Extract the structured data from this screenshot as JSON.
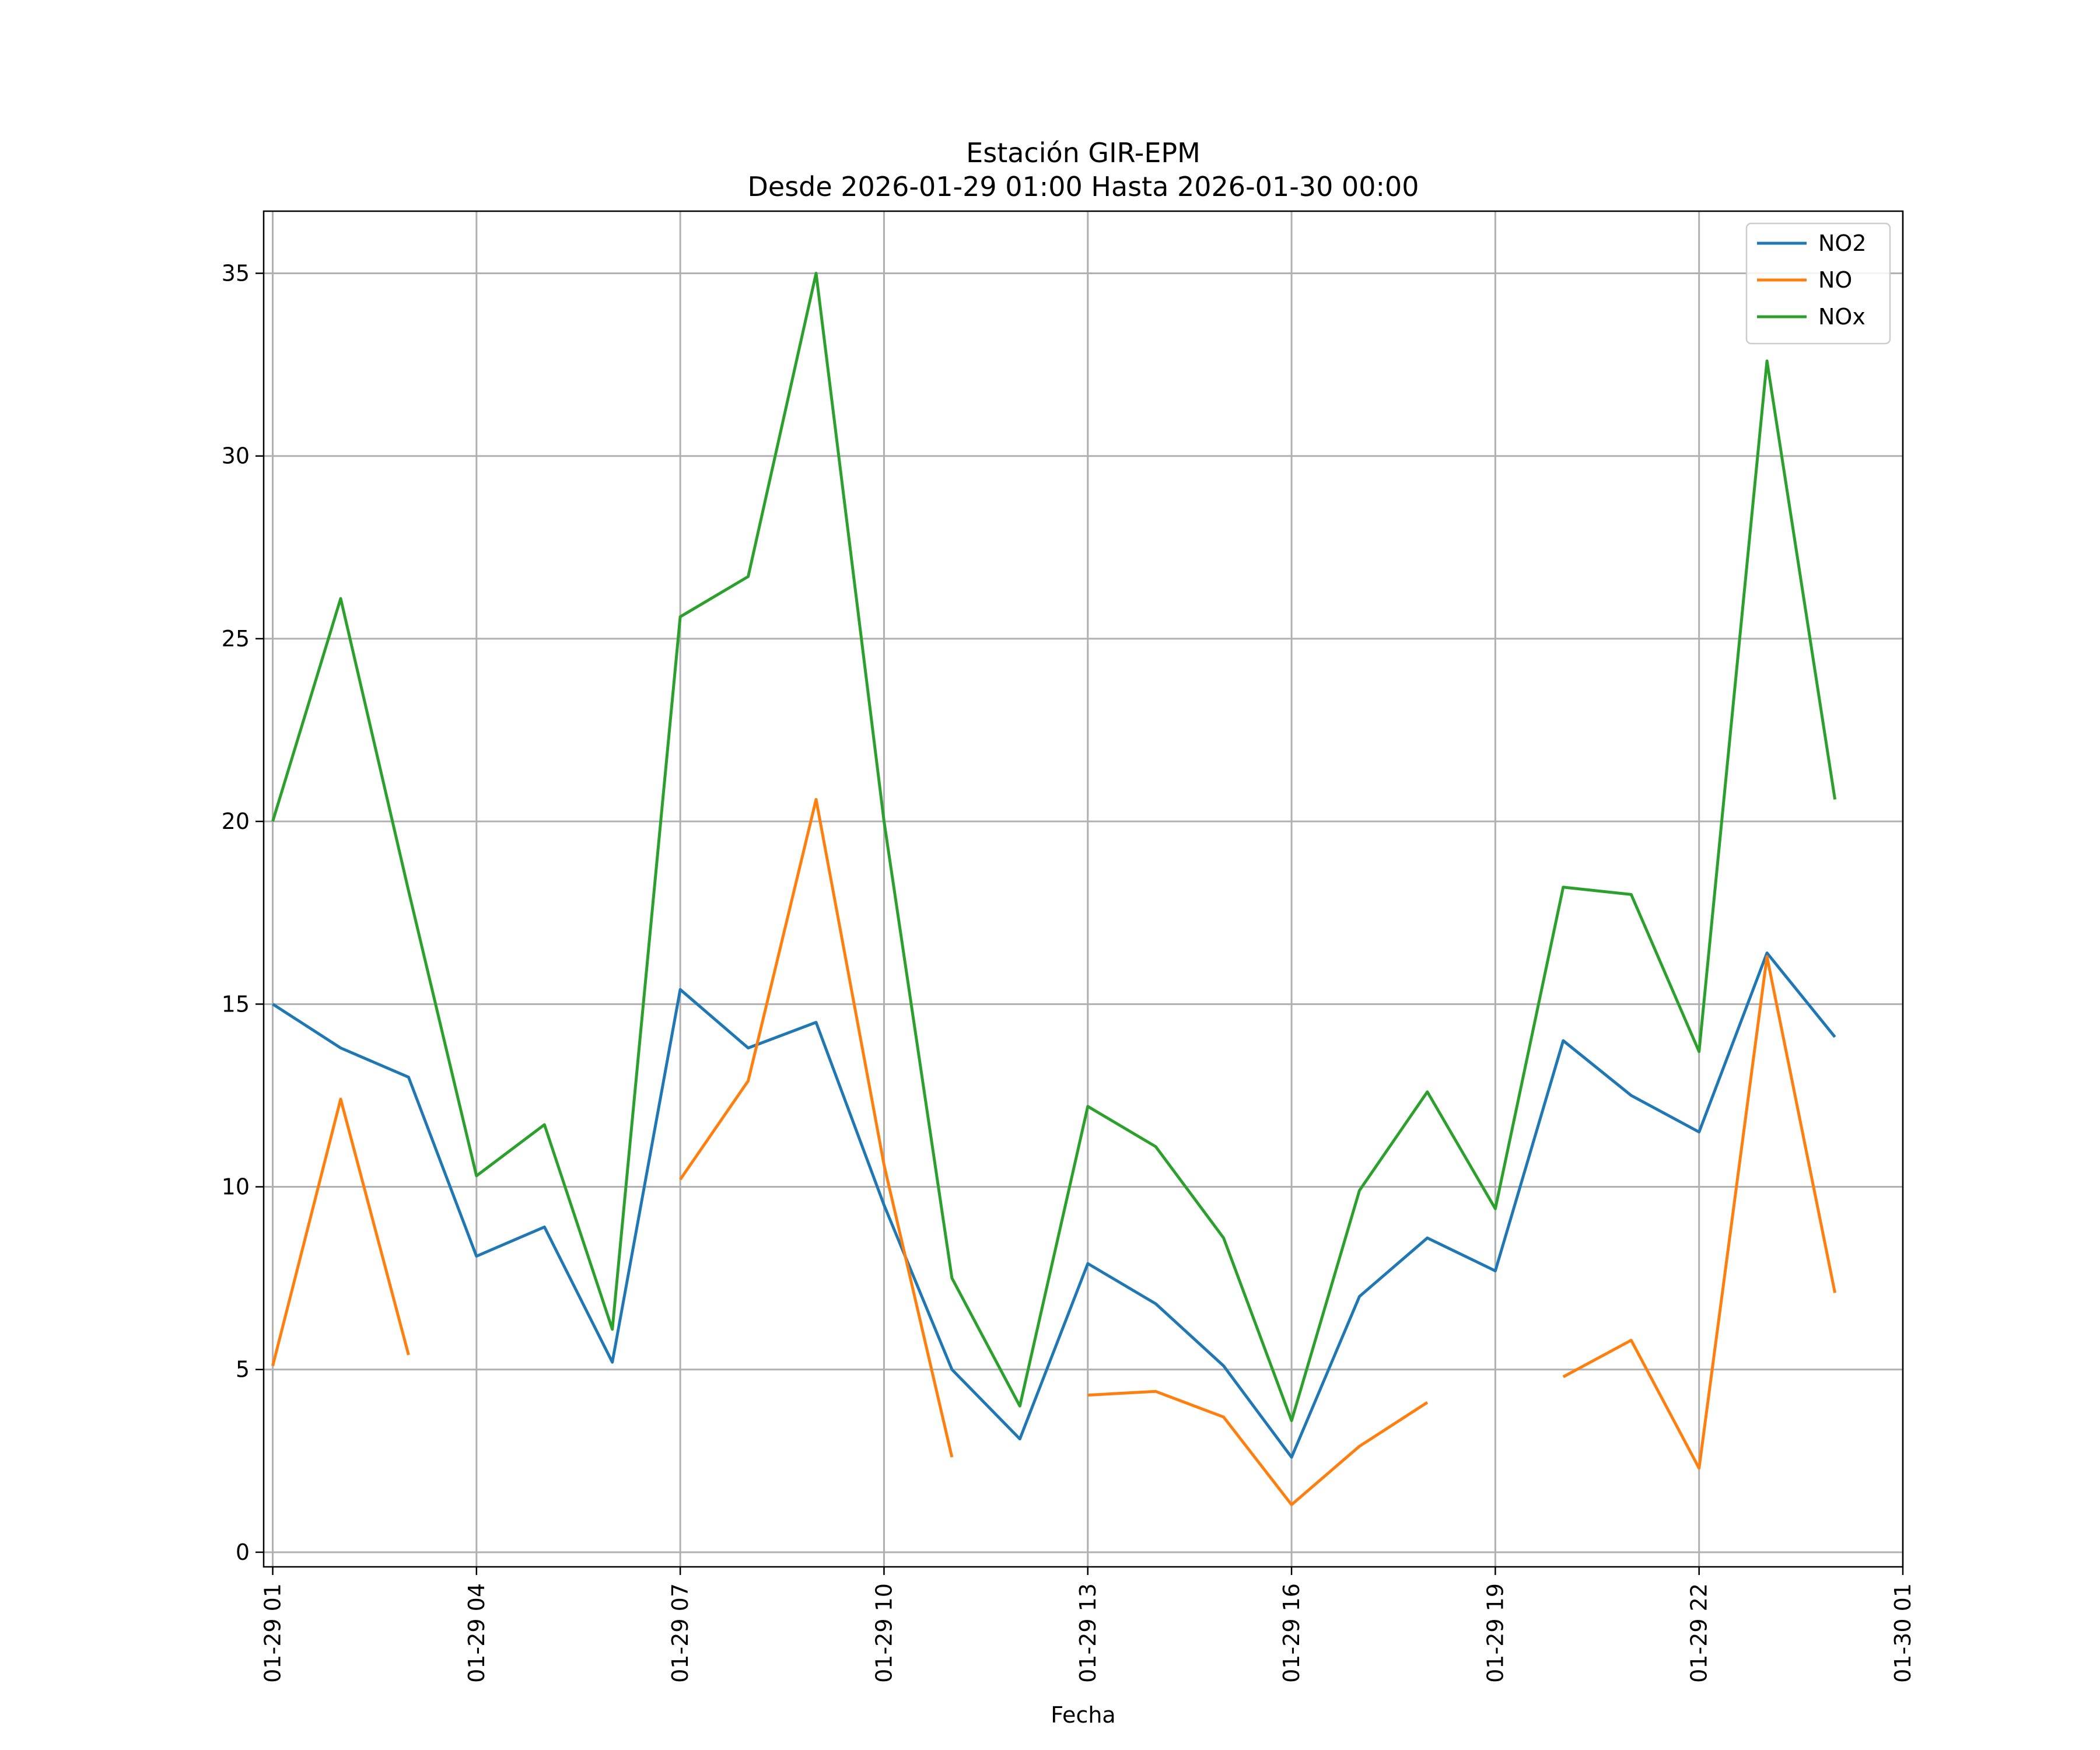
{
  "chart_data": {
    "type": "line",
    "title": "Estación GIR-EPM",
    "subtitle": "Desde 2026-01-29 01:00 Hasta 2026-01-30 00:00",
    "xlabel": "Fecha",
    "ylabel": "",
    "x": [
      "01-29 01",
      "01-29 02",
      "01-29 03",
      "01-29 04",
      "01-29 05",
      "01-29 06",
      "01-29 07",
      "01-29 08",
      "01-29 09",
      "01-29 10",
      "01-29 11",
      "01-29 12",
      "01-29 13",
      "01-29 14",
      "01-29 15",
      "01-29 16",
      "01-29 17",
      "01-29 18",
      "01-29 19",
      "01-29 20",
      "01-29 21",
      "01-29 22",
      "01-29 23",
      "01-30 00"
    ],
    "xticks": [
      "01-29 01",
      "01-29 04",
      "01-29 07",
      "01-29 10",
      "01-29 13",
      "01-29 16",
      "01-29 19",
      "01-29 22",
      "01-30 01"
    ],
    "xlim": [
      "01-29 00 (approx. 23:52 on 01-28)",
      "01-30 01"
    ],
    "ylim": [
      -0.4,
      36.7
    ],
    "yticks": [
      0,
      5,
      10,
      15,
      20,
      25,
      30,
      35
    ],
    "grid": true,
    "legend_position": "top-right",
    "series": [
      {
        "name": "NO2",
        "color": "#1f77b4",
        "values": [
          15.0,
          13.8,
          13.0,
          8.1,
          8.9,
          5.2,
          15.4,
          13.8,
          14.5,
          9.5,
          5.0,
          3.1,
          7.9,
          6.8,
          5.1,
          2.6,
          7.0,
          8.6,
          7.7,
          14.0,
          12.5,
          11.5,
          16.4,
          14.1
        ]
      },
      {
        "name": "NO",
        "color": "#ff7f0e",
        "values": [
          5.1,
          12.4,
          5.4,
          null,
          null,
          null,
          10.2,
          12.9,
          20.6,
          10.6,
          2.6,
          null,
          4.3,
          4.4,
          3.7,
          1.3,
          2.9,
          4.1,
          null,
          4.8,
          5.8,
          2.3,
          16.3,
          7.1
        ]
      },
      {
        "name": "NOx",
        "color": "#2ca02c",
        "values": [
          20.0,
          26.1,
          18.1,
          10.3,
          11.7,
          6.1,
          25.6,
          26.7,
          35.0,
          20.0,
          7.5,
          4.0,
          12.2,
          11.1,
          8.6,
          3.6,
          9.9,
          12.6,
          9.4,
          18.2,
          18.0,
          13.7,
          32.6,
          20.6
        ]
      }
    ]
  }
}
